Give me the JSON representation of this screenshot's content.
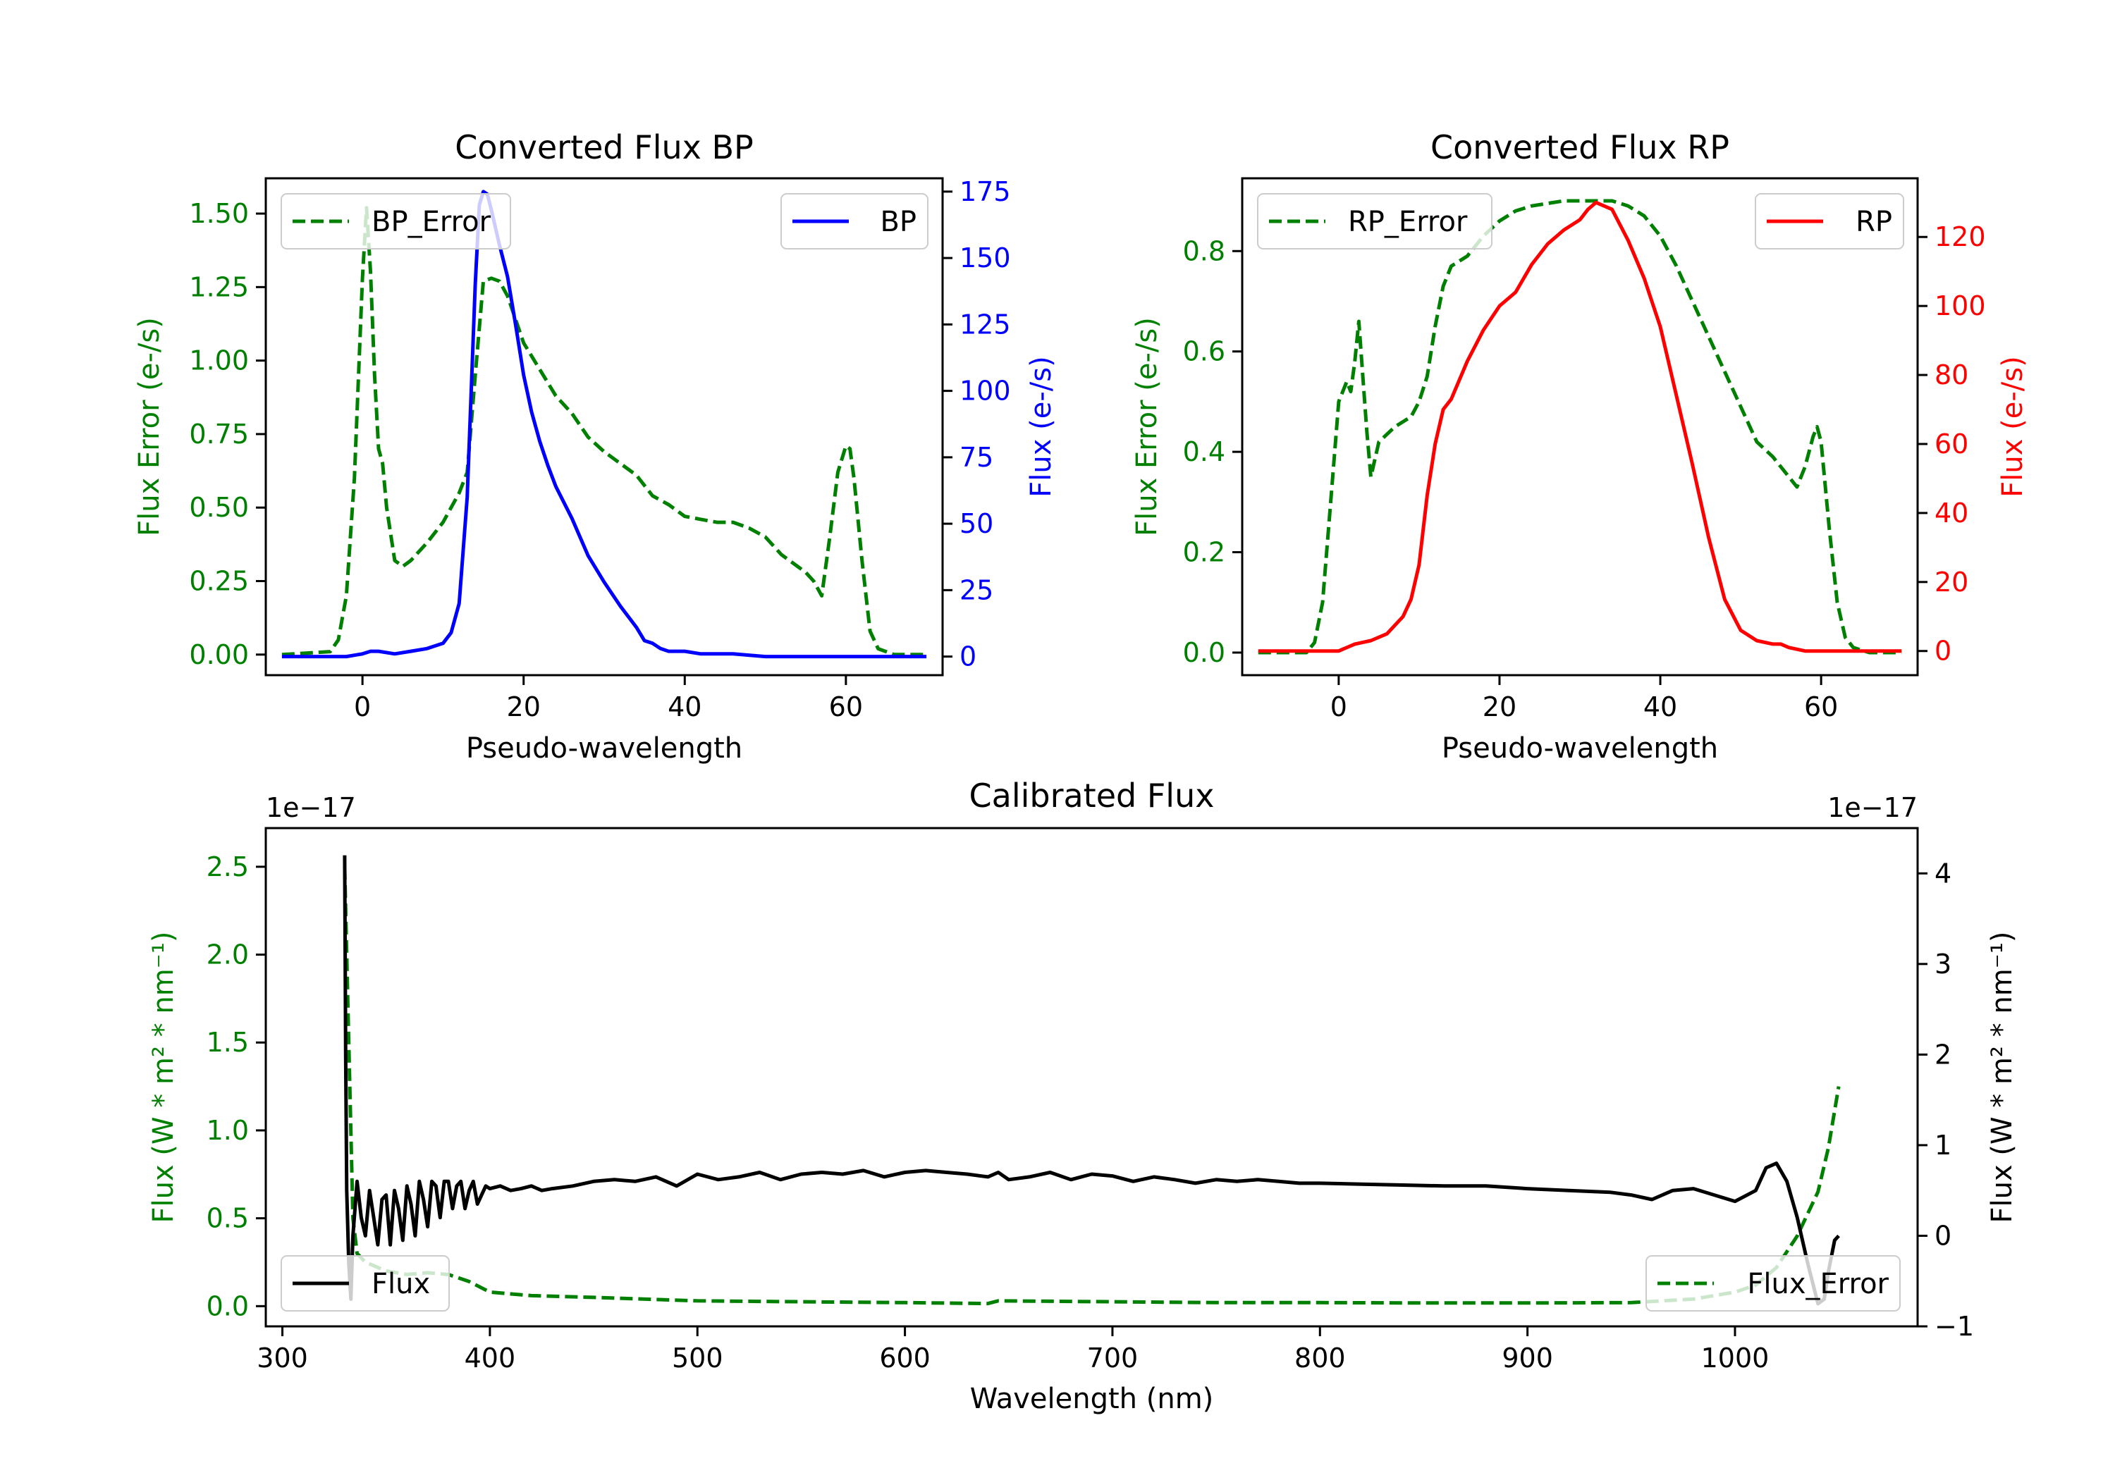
{
  "chart_data": [
    {
      "type": "line",
      "title": "Converted Flux BP",
      "xlabel": "Pseudo-wavelength",
      "xlim": [
        -12,
        72
      ],
      "xticks": [
        0,
        20,
        40,
        60
      ],
      "left_axis": {
        "label": "Flux Error (e-/s)",
        "color": "#008000",
        "ylim": [
          -0.07,
          1.62
        ],
        "ticks": [
          0.0,
          0.25,
          0.5,
          0.75,
          1.0,
          1.25,
          1.5
        ],
        "tick_labels": [
          "0.00",
          "0.25",
          "0.50",
          "0.75",
          "1.00",
          "1.25",
          "1.50"
        ]
      },
      "right_axis": {
        "label": "Flux (e-/s)",
        "color": "#0000ff",
        "ylim": [
          -7,
          180
        ],
        "ticks": [
          0,
          25,
          50,
          75,
          100,
          125,
          150,
          175
        ],
        "tick_labels": [
          "0",
          "25",
          "50",
          "75",
          "100",
          "125",
          "150",
          "175"
        ]
      },
      "series": [
        {
          "name": "BP_Error",
          "axis": "left",
          "color": "#008000",
          "style": "dashed",
          "x": [
            -10,
            -4,
            -3,
            -2,
            -1,
            0,
            0.5,
            1,
            1.5,
            2,
            2.5,
            3,
            4,
            5,
            6,
            8,
            10,
            12,
            13,
            14,
            15,
            16,
            17,
            18,
            19,
            20,
            22,
            24,
            26,
            28,
            30,
            32,
            34,
            36,
            38,
            40,
            42,
            44,
            46,
            48,
            50,
            52,
            54,
            55,
            56,
            57,
            58,
            59,
            60,
            60.5,
            61,
            62,
            63,
            64,
            66,
            70
          ],
          "values": [
            0.0,
            0.01,
            0.05,
            0.2,
            0.6,
            1.28,
            1.52,
            1.3,
            0.95,
            0.7,
            0.65,
            0.5,
            0.32,
            0.3,
            0.32,
            0.38,
            0.45,
            0.55,
            0.62,
            0.95,
            1.27,
            1.28,
            1.27,
            1.22,
            1.14,
            1.06,
            0.97,
            0.88,
            0.82,
            0.74,
            0.69,
            0.65,
            0.61,
            0.54,
            0.51,
            0.47,
            0.46,
            0.45,
            0.45,
            0.43,
            0.4,
            0.34,
            0.3,
            0.28,
            0.25,
            0.2,
            0.4,
            0.62,
            0.71,
            0.7,
            0.6,
            0.32,
            0.08,
            0.02,
            0.0,
            0.0
          ]
        },
        {
          "name": "BP",
          "axis": "right",
          "color": "#0000ff",
          "style": "solid",
          "x": [
            -10,
            -4,
            -2,
            0,
            1,
            2,
            4,
            6,
            8,
            10,
            11,
            12,
            13,
            14,
            14.5,
            15,
            15.5,
            16,
            17,
            18,
            19,
            20,
            21,
            22,
            23,
            24,
            26,
            28,
            30,
            32,
            34,
            35,
            36,
            37,
            38,
            40,
            42,
            44,
            46,
            50,
            55,
            60,
            65,
            70
          ],
          "values": [
            0,
            0,
            0,
            1,
            2,
            2,
            1,
            2,
            3,
            5,
            9,
            20,
            60,
            140,
            170,
            175,
            174,
            168,
            155,
            143,
            125,
            106,
            92,
            81,
            72,
            64,
            52,
            38,
            28,
            19,
            11,
            6,
            5,
            3,
            2,
            2,
            1,
            1,
            1,
            0,
            0,
            0,
            0,
            0
          ]
        }
      ],
      "legends": [
        {
          "entries": [
            "BP_Error"
          ],
          "position": "upper left"
        },
        {
          "entries": [
            "BP"
          ],
          "position": "upper right"
        }
      ]
    },
    {
      "type": "line",
      "title": "Converted Flux RP",
      "xlabel": "Pseudo-wavelength",
      "xlim": [
        -12,
        72
      ],
      "xticks": [
        0,
        20,
        40,
        60
      ],
      "left_axis": {
        "label": "Flux Error (e-/s)",
        "color": "#008000",
        "ylim": [
          -0.045,
          0.945
        ],
        "ticks": [
          0.0,
          0.2,
          0.4,
          0.6,
          0.8
        ],
        "tick_labels": [
          "0.0",
          "0.2",
          "0.4",
          "0.6",
          "0.8"
        ]
      },
      "right_axis": {
        "label": "Flux (e-/s)",
        "color": "#ff0000",
        "ylim": [
          -7,
          137
        ],
        "ticks": [
          0,
          20,
          40,
          60,
          80,
          100,
          120
        ],
        "tick_labels": [
          "0",
          "20",
          "40",
          "60",
          "80",
          "100",
          "120"
        ]
      },
      "series": [
        {
          "name": "RP_Error",
          "axis": "right_placeholder_none",
          "color": "#008000",
          "style": "dashed",
          "x": [
            -10,
            -4,
            -3,
            -2,
            -1,
            0,
            1,
            1.5,
            2,
            2.5,
            3,
            3.5,
            4,
            5,
            7,
            9,
            10,
            11,
            12,
            13,
            14,
            16,
            18,
            20,
            22,
            24,
            26,
            28,
            30,
            32,
            34,
            36,
            38,
            40,
            42,
            44,
            46,
            48,
            50,
            52,
            54,
            55,
            56,
            57,
            58,
            59,
            59.5,
            60,
            61,
            62,
            63,
            64,
            66,
            70
          ],
          "values": [
            0.0,
            0.0,
            0.02,
            0.1,
            0.3,
            0.5,
            0.54,
            0.52,
            0.58,
            0.66,
            0.55,
            0.44,
            0.35,
            0.42,
            0.45,
            0.47,
            0.5,
            0.55,
            0.65,
            0.73,
            0.77,
            0.79,
            0.83,
            0.86,
            0.88,
            0.89,
            0.895,
            0.9,
            0.9,
            0.9,
            0.9,
            0.89,
            0.87,
            0.83,
            0.77,
            0.7,
            0.63,
            0.56,
            0.49,
            0.42,
            0.39,
            0.37,
            0.35,
            0.33,
            0.37,
            0.43,
            0.45,
            0.42,
            0.25,
            0.1,
            0.03,
            0.01,
            0.0,
            0.0
          ]
        },
        {
          "name": "RP",
          "axis": "right",
          "color": "#ff0000",
          "style": "solid",
          "x": [
            -10,
            -4,
            0,
            2,
            4,
            6,
            8,
            9,
            10,
            11,
            12,
            13,
            14,
            16,
            18,
            20,
            22,
            24,
            26,
            28,
            30,
            31,
            32,
            33,
            34,
            36,
            38,
            40,
            42,
            44,
            46,
            48,
            50,
            52,
            54,
            55,
            56,
            58,
            60,
            62,
            65,
            70
          ],
          "values": [
            0,
            0,
            0,
            2,
            3,
            5,
            10,
            15,
            25,
            45,
            60,
            70,
            73,
            84,
            93,
            100,
            104,
            112,
            118,
            122,
            125,
            128,
            130,
            129,
            128,
            119,
            108,
            94,
            74,
            54,
            33,
            15,
            6,
            3,
            2,
            2,
            1,
            0,
            0,
            0,
            0,
            0
          ]
        }
      ],
      "legends": [
        {
          "entries": [
            "RP_Error"
          ],
          "position": "upper left"
        },
        {
          "entries": [
            "RP"
          ],
          "position": "upper right"
        }
      ]
    },
    {
      "type": "line",
      "title": "Calibrated Flux",
      "xlabel": "Wavelength (nm)",
      "xlim": [
        292,
        1088
      ],
      "xticks": [
        300,
        400,
        500,
        600,
        700,
        800,
        900,
        1000
      ],
      "left_axis": {
        "label": "Flux (W * m² * nm⁻¹)",
        "color": "#008000",
        "ylim": [
          -0.115,
          2.72
        ],
        "offset_text": "1e−17",
        "ticks": [
          0.0,
          0.5,
          1.0,
          1.5,
          2.0,
          2.5
        ],
        "tick_labels": [
          "0.0",
          "0.5",
          "1.0",
          "1.5",
          "2.0",
          "2.5"
        ]
      },
      "right_axis": {
        "label": "Flux (W * m² * nm⁻¹)",
        "color": "#000000",
        "ylim": [
          -1.0,
          4.5
        ],
        "offset_text": "1e−17",
        "ticks": [
          -1,
          0,
          1,
          2,
          3,
          4
        ],
        "tick_labels": [
          "−1",
          "0",
          "1",
          "2",
          "3",
          "4"
        ]
      },
      "series": [
        {
          "name": "Flux_Error",
          "axis": "left",
          "color": "#008000",
          "style": "dashed",
          "x": [
            330,
            332,
            334,
            336,
            340,
            350,
            360,
            370,
            380,
            390,
            400,
            420,
            450,
            500,
            550,
            600,
            640,
            645,
            700,
            750,
            800,
            850,
            900,
            950,
            980,
            1000,
            1010,
            1020,
            1030,
            1040,
            1045,
            1050
          ],
          "values": [
            2.5,
            1.5,
            0.5,
            0.3,
            0.25,
            0.2,
            0.18,
            0.19,
            0.18,
            0.14,
            0.08,
            0.06,
            0.05,
            0.03,
            0.025,
            0.02,
            0.015,
            0.03,
            0.025,
            0.02,
            0.02,
            0.018,
            0.018,
            0.02,
            0.04,
            0.08,
            0.12,
            0.22,
            0.4,
            0.65,
            0.9,
            1.25
          ]
        },
        {
          "name": "Flux",
          "axis": "right",
          "color": "#000000",
          "style": "solid",
          "x": [
            330,
            330.5,
            331,
            332,
            333,
            334,
            336,
            338,
            340,
            342,
            344,
            346,
            348,
            350,
            352,
            354,
            356,
            358,
            360,
            362,
            364,
            366,
            368,
            370,
            372,
            374,
            376,
            378,
            380,
            382,
            384,
            386,
            388,
            390,
            392,
            394,
            396,
            398,
            400,
            405,
            410,
            415,
            420,
            425,
            430,
            440,
            450,
            460,
            470,
            480,
            490,
            500,
            510,
            520,
            530,
            540,
            550,
            560,
            570,
            580,
            590,
            600,
            610,
            620,
            630,
            640,
            645,
            650,
            660,
            670,
            680,
            690,
            700,
            710,
            720,
            730,
            740,
            750,
            760,
            770,
            780,
            790,
            800,
            820,
            840,
            860,
            880,
            900,
            920,
            940,
            950,
            960,
            970,
            980,
            990,
            1000,
            1010,
            1015,
            1020,
            1025,
            1030,
            1035,
            1040,
            1043,
            1045,
            1048,
            1050
          ],
          "values": [
            4.2,
            2.0,
            0.5,
            -0.3,
            -0.7,
            0.0,
            0.6,
            0.2,
            0.0,
            0.5,
            0.2,
            -0.1,
            0.4,
            0.45,
            -0.1,
            0.5,
            0.3,
            -0.05,
            0.55,
            0.35,
            0.0,
            0.6,
            0.4,
            0.1,
            0.6,
            0.55,
            0.2,
            0.6,
            0.6,
            0.3,
            0.55,
            0.6,
            0.3,
            0.5,
            0.6,
            0.35,
            0.45,
            0.55,
            0.52,
            0.55,
            0.5,
            0.52,
            0.55,
            0.5,
            0.52,
            0.55,
            0.6,
            0.62,
            0.6,
            0.65,
            0.55,
            0.68,
            0.62,
            0.65,
            0.7,
            0.62,
            0.68,
            0.7,
            0.68,
            0.72,
            0.65,
            0.7,
            0.72,
            0.7,
            0.68,
            0.65,
            0.7,
            0.62,
            0.65,
            0.7,
            0.62,
            0.68,
            0.66,
            0.6,
            0.65,
            0.62,
            0.58,
            0.62,
            0.6,
            0.62,
            0.6,
            0.58,
            0.58,
            0.57,
            0.56,
            0.55,
            0.55,
            0.52,
            0.5,
            0.48,
            0.45,
            0.4,
            0.5,
            0.52,
            0.45,
            0.38,
            0.5,
            0.75,
            0.8,
            0.6,
            0.2,
            -0.3,
            -0.75,
            -0.7,
            -0.4,
            -0.05,
            0.0
          ]
        }
      ],
      "legends": [
        {
          "entries": [
            "Flux"
          ],
          "position": "lower left"
        },
        {
          "entries": [
            "Flux_Error"
          ],
          "position": "lower right"
        }
      ]
    }
  ]
}
